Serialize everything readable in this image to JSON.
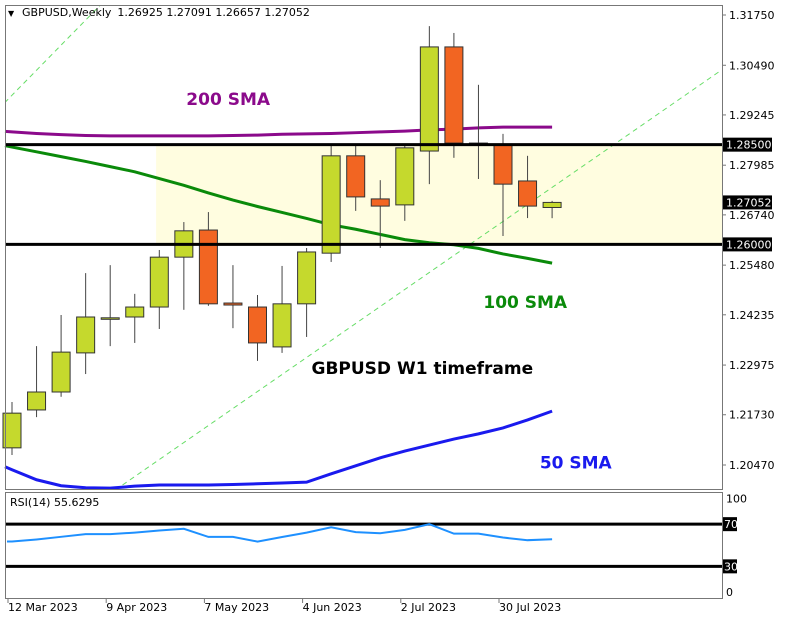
{
  "chart_data": {
    "type": "candlestick",
    "title": "GBPUSD,Weekly",
    "ohlc_readout": "1.26925 1.27091 1.26657 1.27052",
    "colors": {
      "bull": "#c5d92d",
      "bear": "#f26522",
      "outline": "#333333",
      "zone": "#fffde0",
      "sma200": "#8b0a8b",
      "sma100": "#0a8a0a",
      "sma50": "#1a1aee",
      "trendline": "#66dd66",
      "rsi": "#1e90ff"
    },
    "candles": [
      {
        "o": 1.209,
        "h": 1.2205,
        "l": 1.2072,
        "c": 1.2177
      },
      {
        "o": 1.2185,
        "h": 1.2345,
        "l": 1.2167,
        "c": 1.223
      },
      {
        "o": 1.223,
        "h": 1.2423,
        "l": 1.2218,
        "c": 1.233
      },
      {
        "o": 1.2328,
        "h": 1.2528,
        "l": 1.2275,
        "c": 1.2418
      },
      {
        "o": 1.2415,
        "h": 1.2548,
        "l": 1.2345,
        "c": 1.2416
      },
      {
        "o": 1.2418,
        "h": 1.2476,
        "l": 1.2353,
        "c": 1.2443
      },
      {
        "o": 1.2443,
        "h": 1.2586,
        "l": 1.2388,
        "c": 1.2568
      },
      {
        "o": 1.2568,
        "h": 1.2656,
        "l": 1.2436,
        "c": 1.2634
      },
      {
        "o": 1.2636,
        "h": 1.2681,
        "l": 1.2446,
        "c": 1.2451
      },
      {
        "o": 1.2453,
        "h": 1.2548,
        "l": 1.239,
        "c": 1.2448
      },
      {
        "o": 1.2443,
        "h": 1.2473,
        "l": 1.2308,
        "c": 1.2353
      },
      {
        "o": 1.2343,
        "h": 1.2546,
        "l": 1.2328,
        "c": 1.2451
      },
      {
        "o": 1.2451,
        "h": 1.2591,
        "l": 1.2368,
        "c": 1.2581
      },
      {
        "o": 1.2578,
        "h": 1.2847,
        "l": 1.2556,
        "c": 1.2822
      },
      {
        "o": 1.2822,
        "h": 1.2847,
        "l": 1.2684,
        "c": 1.2719
      },
      {
        "o": 1.2714,
        "h": 1.2761,
        "l": 1.2591,
        "c": 1.2696
      },
      {
        "o": 1.2699,
        "h": 1.2847,
        "l": 1.2659,
        "c": 1.2842
      },
      {
        "o": 1.2834,
        "h": 1.3147,
        "l": 1.2751,
        "c": 1.3095
      },
      {
        "o": 1.3095,
        "h": 1.313,
        "l": 1.2817,
        "c": 1.2854
      },
      {
        "o": 1.2854,
        "h": 1.3,
        "l": 1.2764,
        "c": 1.2849
      },
      {
        "o": 1.2849,
        "h": 1.2877,
        "l": 1.2621,
        "c": 1.2751
      },
      {
        "o": 1.2759,
        "h": 1.2822,
        "l": 1.2666,
        "c": 1.2696
      },
      {
        "o": 1.26925,
        "h": 1.27091,
        "l": 1.26657,
        "c": 1.27052
      }
    ],
    "sma200": [
      1.2882,
      1.2878,
      1.2875,
      1.2873,
      1.2872,
      1.2872,
      1.2872,
      1.2872,
      1.2872,
      1.2873,
      1.2874,
      1.2876,
      1.2877,
      1.2878,
      1.288,
      1.2882,
      1.2884,
      1.2887,
      1.2889,
      1.2892,
      1.2894,
      1.2894,
      1.2894
    ],
    "sma100": [
      1.2844,
      1.2832,
      1.282,
      1.2808,
      1.2795,
      1.2782,
      1.2765,
      1.2748,
      1.2729,
      1.2711,
      1.2695,
      1.268,
      1.2665,
      1.2649,
      1.2638,
      1.2625,
      1.2612,
      1.2604,
      1.2599,
      1.259,
      1.2576,
      1.2565,
      1.2553
    ],
    "sma50": [
      1.2035,
      1.201,
      1.1995,
      1.199,
      1.1989,
      1.1994,
      1.1997,
      1.1997,
      1.1997,
      1.1998,
      1.2,
      1.2002,
      1.2004,
      1.2025,
      1.2045,
      1.2065,
      1.2082,
      1.2097,
      1.2112,
      1.2125,
      1.214,
      1.216,
      1.2182
    ],
    "rsi": {
      "label": "RSI(14) 55.6295",
      "values": [
        53.5,
        55.5,
        58,
        60.5,
        60.5,
        62,
        64,
        65.6,
        57.9,
        57.9,
        53.5,
        57.8,
        62,
        67,
        62.4,
        61.4,
        64.6,
        70,
        61,
        61,
        57.3,
        54.8,
        55.63
      ],
      "levels": [
        "70",
        "30"
      ],
      "ticks": [
        "100",
        "70",
        "30",
        "0"
      ]
    },
    "horizontal_levels": [
      {
        "price": 1.285,
        "label": "1.28500"
      },
      {
        "price": 1.26,
        "label": "1.26000"
      }
    ],
    "current_price": {
      "price": 1.27052,
      "label": "1.27052"
    },
    "zone": {
      "from_index": 5.87,
      "top": 1.285,
      "bottom": 1.26
    },
    "trendlines": [
      {
        "start": [
          -0.3,
          1.2955
        ],
        "end": [
          3.6,
          1.32
        ]
      },
      {
        "start": [
          4.2,
          1.1984
        ],
        "end": [
          28.9,
          1.3037
        ]
      }
    ],
    "yaxis": {
      "range": [
        1.1985,
        1.3175
      ],
      "ticks": [
        "1.31750",
        "1.30490",
        "1.29245",
        "1.27985",
        "1.26740",
        "1.25480",
        "1.24235",
        "1.22975",
        "1.21730",
        "1.20470"
      ]
    },
    "xaxis": {
      "ticks": [
        {
          "label": "12 Mar 2023",
          "index": 0
        },
        {
          "label": "9 Apr 2023",
          "index": 4
        },
        {
          "label": "7 May 2023",
          "index": 8
        },
        {
          "label": "4 Jun 2023",
          "index": 12
        },
        {
          "label": "2 Jul 2023",
          "index": 16
        },
        {
          "label": "30 Jul 2023",
          "index": 20
        }
      ]
    },
    "annotations": [
      {
        "text": "200 SMA",
        "color": "#8b0a8b",
        "index": 7.1,
        "price": 1.295
      },
      {
        "text": "100 SMA",
        "color": "#0a8a0a",
        "index": 19.2,
        "price": 1.244
      },
      {
        "text": "GBPUSD W1 timeframe",
        "color": "#000000",
        "index": 12.2,
        "price": 1.2275
      },
      {
        "text": "50 SMA",
        "color": "#1a1aee",
        "index": 21.5,
        "price": 1.2038
      }
    ]
  }
}
